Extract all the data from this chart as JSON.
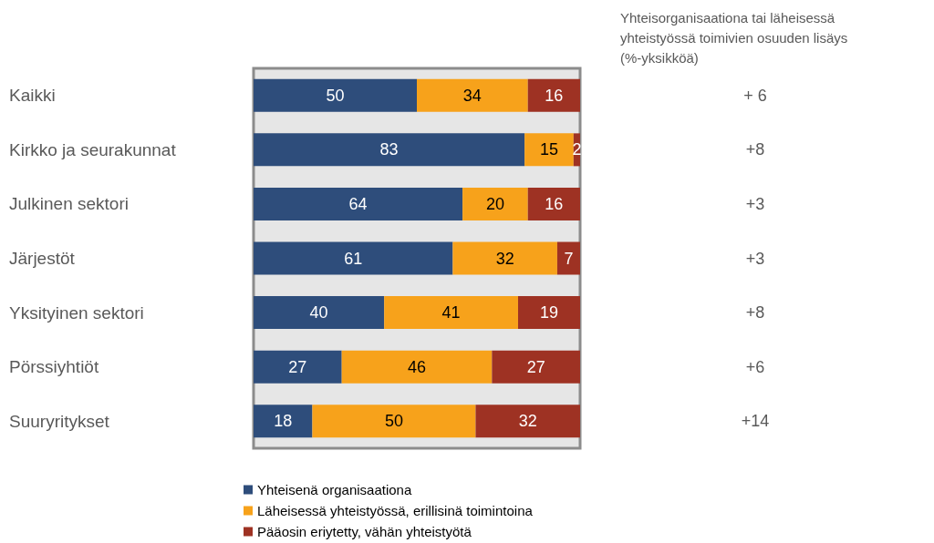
{
  "chart_data": {
    "type": "bar",
    "orientation": "horizontal",
    "stacked": true,
    "data_labels": true,
    "legend": "bottom",
    "tick_labels": "y",
    "categories": [
      "Kaikki",
      "Kirkko ja seurakunnat",
      "Julkinen sektori",
      "Järjestöt",
      "Yksityinen sektori",
      "Pörssiyhtiöt",
      "Suuryritykset"
    ],
    "series": [
      {
        "name": "Yhteisenä organisaationa",
        "color": "#2e4d7b",
        "values": [
          50,
          83,
          64,
          61,
          40,
          27,
          18
        ]
      },
      {
        "name": "Läheisessä yhteistyössä, erillisinä toimintoina",
        "color": "#f7a21b",
        "values": [
          34,
          15,
          20,
          32,
          41,
          46,
          50
        ]
      },
      {
        "name": "Pääosin eriytetty, vähän yhteistyötä",
        "color": "#9e3223",
        "values": [
          16,
          2,
          16,
          7,
          19,
          27,
          32
        ]
      }
    ],
    "annotations": [
      "Yhteisorganisaationa tai läheisessä yhteistyössä toimivien osuuden lisäys (%-yksikköä)",
      "+ 6",
      "+8",
      "+3",
      "+3",
      "+8",
      "+6",
      "+14"
    ]
  }
}
